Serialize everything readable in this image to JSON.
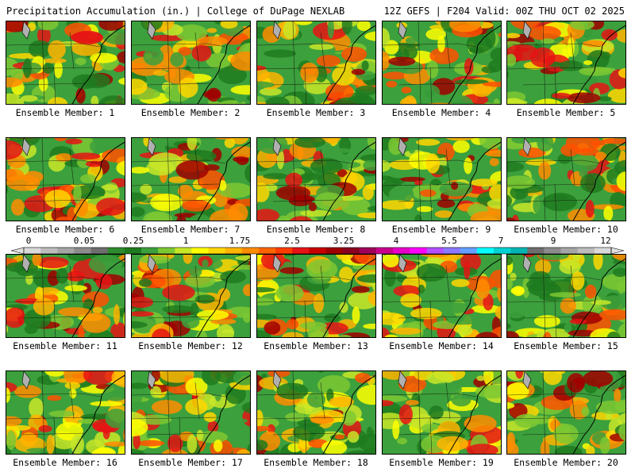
{
  "header": {
    "title_left": "Precipitation Accumulation (in.) | College of DuPage NEXLAB",
    "title_right": "12Z GEFS | F204 Valid: 00Z THU OCT 02 2025"
  },
  "legend": {
    "tick_labels": [
      "0",
      "0.05",
      "0.25",
      "1",
      "1.75",
      "2.5",
      "3.25",
      "4",
      "5.5",
      "7",
      "9",
      "12"
    ],
    "colors": [
      "#d9d9d9",
      "#bdbdbd",
      "#a5a5a5",
      "#8c8c8c",
      "#6e6e6e",
      "#2e8b2e",
      "#1f7a1f",
      "#3ca03c",
      "#7cc832",
      "#c8e628",
      "#ffff00",
      "#ffd700",
      "#ffb400",
      "#ff8c00",
      "#ff6400",
      "#ff3c00",
      "#e61414",
      "#c80000",
      "#a00000",
      "#8b0020",
      "#a0005a",
      "#c8008c",
      "#e600c8",
      "#ff00ff",
      "#b450ff",
      "#8c78ff",
      "#64a0ff",
      "#00ffff",
      "#00d2d2",
      "#00b4b4",
      "#6e6e6e",
      "#8c8c8c",
      "#a5a5a5",
      "#bdbdbd",
      "#d9d9d9"
    ]
  },
  "panels": [
    {
      "label": "Ensemble Member: 1"
    },
    {
      "label": "Ensemble Member: 2"
    },
    {
      "label": "Ensemble Member: 3"
    },
    {
      "label": "Ensemble Member: 4"
    },
    {
      "label": "Ensemble Member: 5"
    },
    {
      "label": "Ensemble Member: 6"
    },
    {
      "label": "Ensemble Member: 7"
    },
    {
      "label": "Ensemble Member: 8"
    },
    {
      "label": "Ensemble Member: 9"
    },
    {
      "label": "Ensemble Member: 10"
    },
    {
      "label": "Ensemble Member: 11"
    },
    {
      "label": "Ensemble Member: 12"
    },
    {
      "label": "Ensemble Member: 13"
    },
    {
      "label": "Ensemble Member: 14"
    },
    {
      "label": "Ensemble Member: 15"
    },
    {
      "label": "Ensemble Member: 16"
    },
    {
      "label": "Ensemble Member: 17"
    },
    {
      "label": "Ensemble Member: 18"
    },
    {
      "label": "Ensemble Member: 19"
    },
    {
      "label": "Ensemble Member: 20"
    }
  ]
}
